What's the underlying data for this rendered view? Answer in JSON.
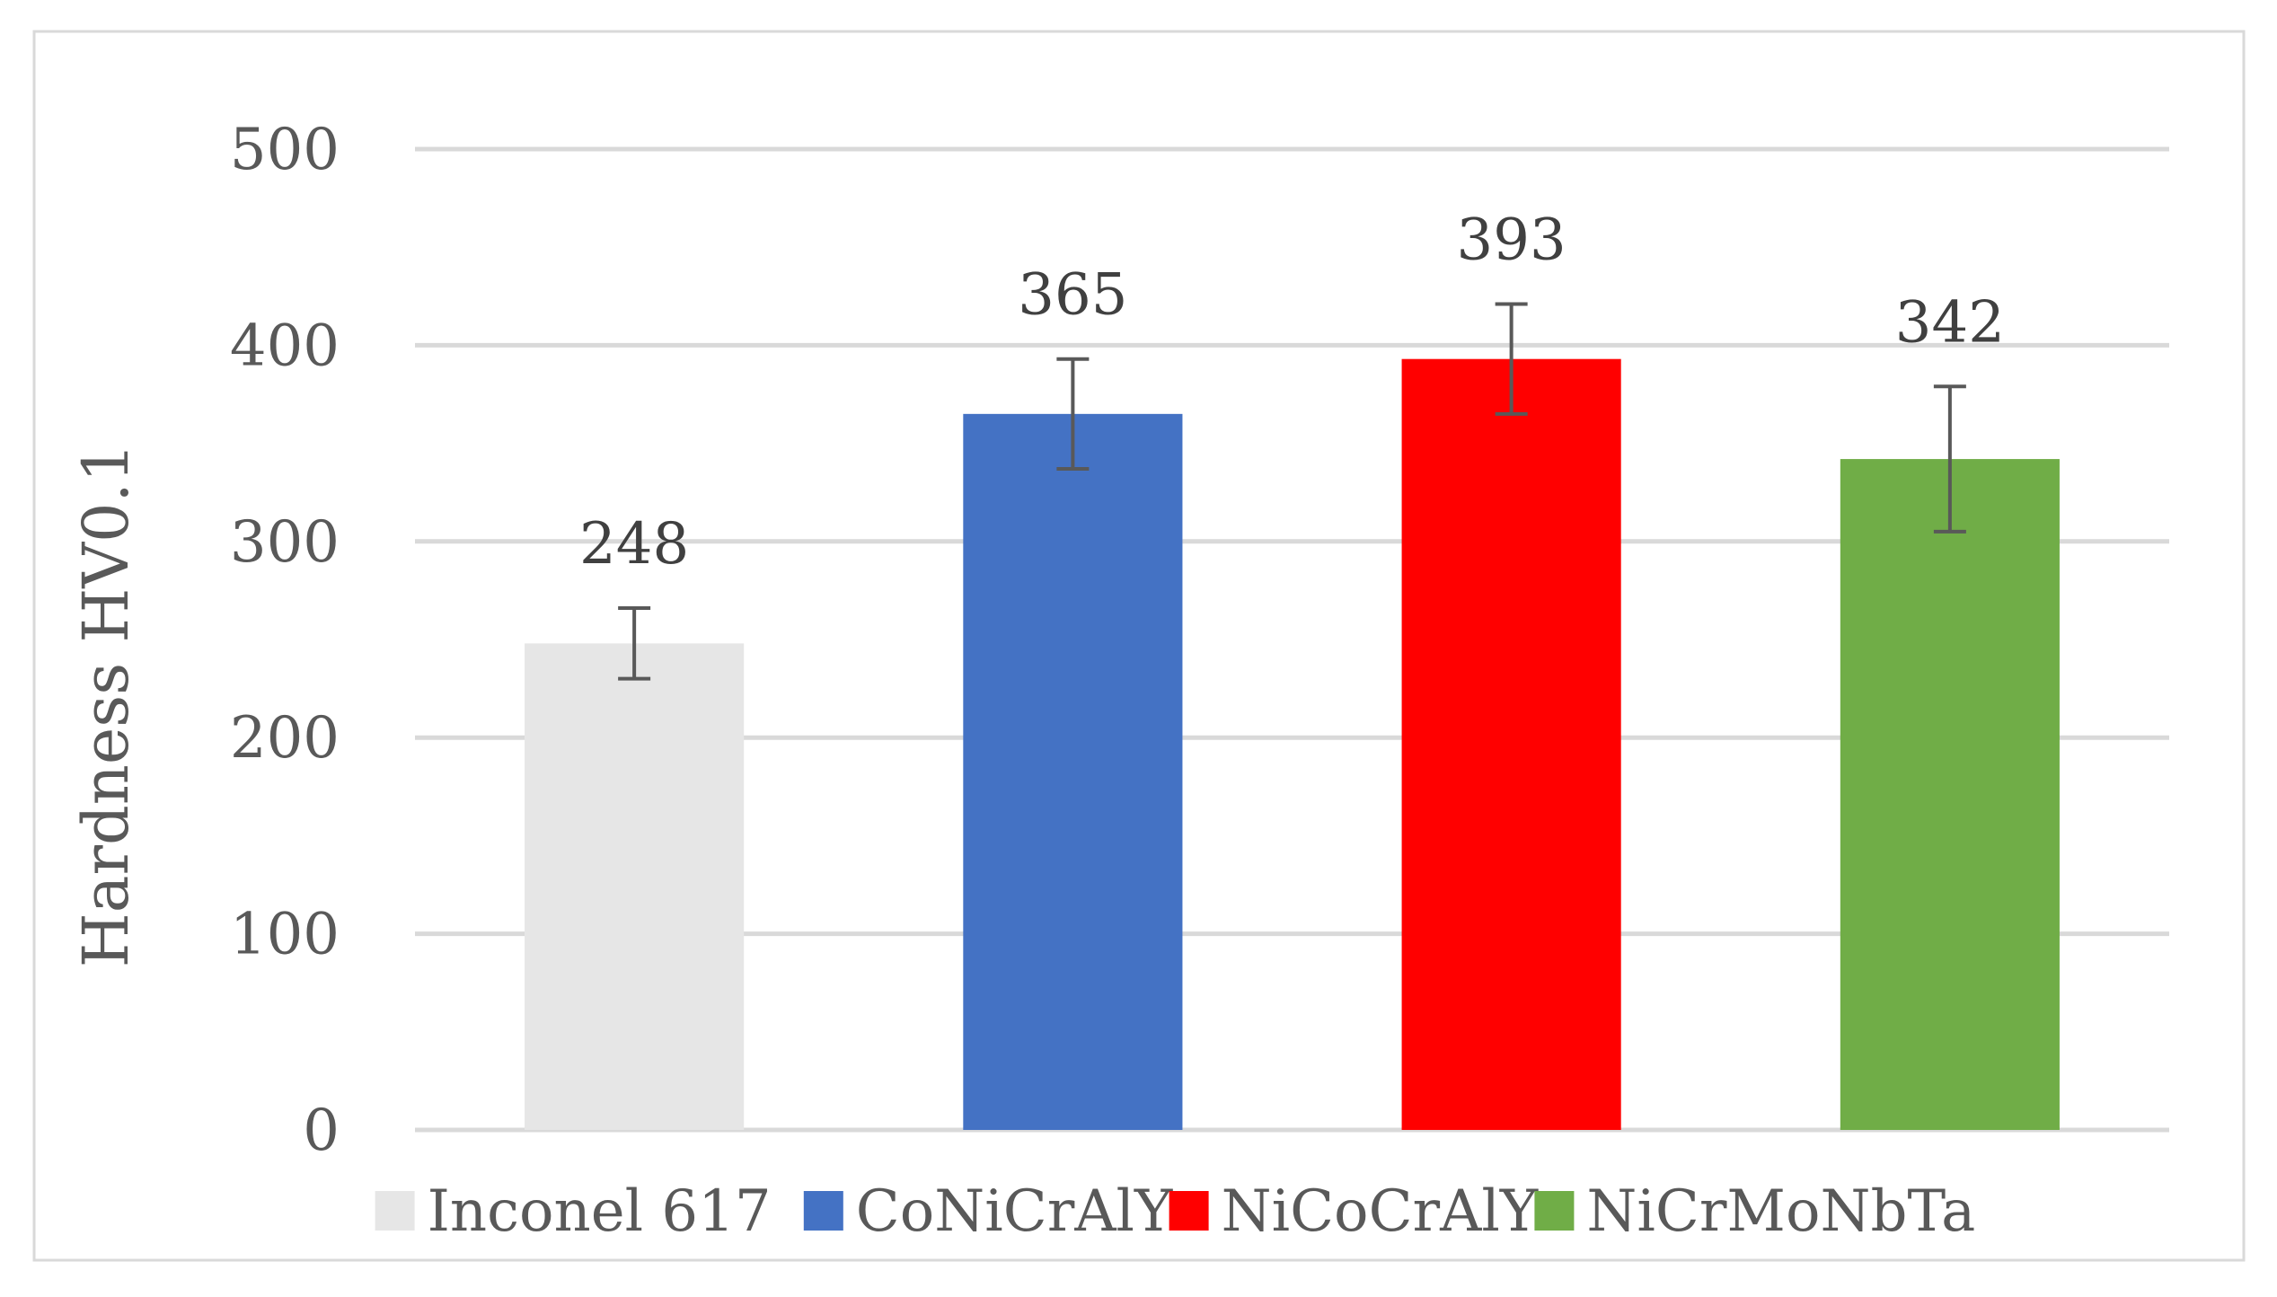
{
  "chart_data": {
    "type": "bar",
    "categories": [
      "Inconel 617",
      "CoNiCrAlY",
      "NiCoCrAlY",
      "NiCrMoNbTa"
    ],
    "values": [
      248,
      365,
      393,
      342
    ],
    "errors": [
      18,
      28,
      28,
      37
    ],
    "data_labels": [
      "248",
      "365",
      "393",
      "342"
    ],
    "colors": [
      "#e6e6e6",
      "#4472c4",
      "#ff0000",
      "#70ad47"
    ],
    "ylabel": "Hardness  HV0.1",
    "ylim": [
      0,
      500
    ],
    "yticks": [
      0,
      100,
      200,
      300,
      400,
      500
    ],
    "grid": true,
    "legend": {
      "position": "bottom",
      "entries": [
        "Inconel 617",
        "CoNiCrAlY",
        "NiCoCrAlY",
        "NiCrMoNbTa"
      ]
    }
  }
}
